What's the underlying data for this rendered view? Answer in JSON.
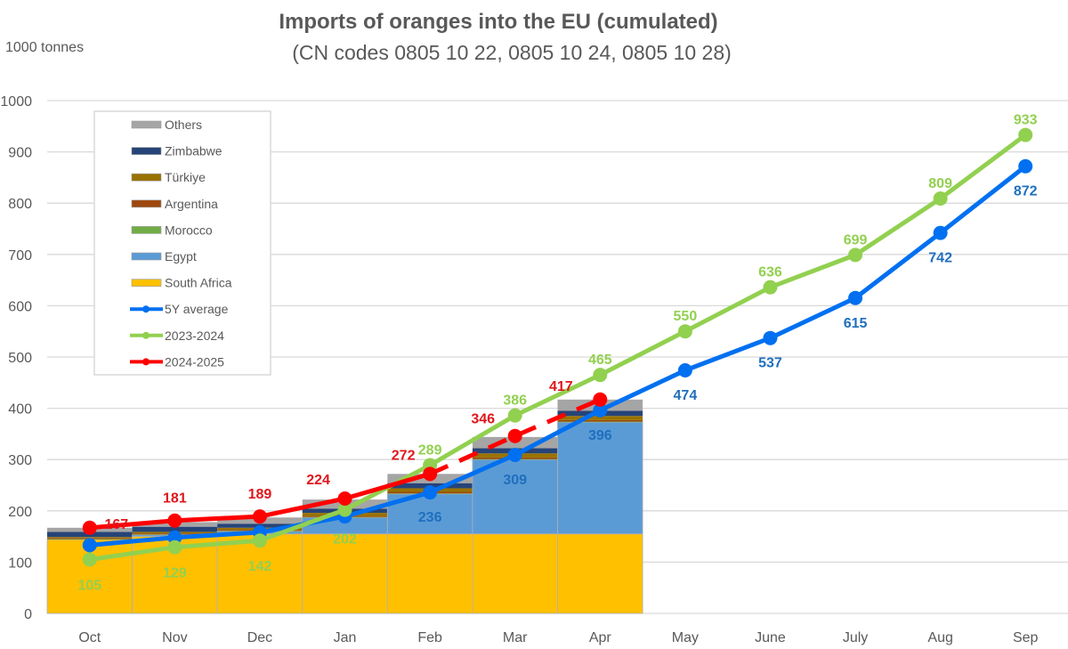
{
  "chart_data": {
    "type": "bar",
    "title": "Imports of oranges into the EU (cumulated)",
    "subtitle": "(CN codes 0805 10 22, 0805 10 24, 0805 10 28)",
    "ylabel": "1000 tonnes",
    "xlabel": "",
    "ylim": [
      0,
      1000
    ],
    "yticks": [
      0,
      100,
      200,
      300,
      400,
      500,
      600,
      700,
      800,
      900,
      1000
    ],
    "grid": true,
    "legend_position": "top-left",
    "categories": [
      "Oct",
      "Nov",
      "Dec",
      "Jan",
      "Feb",
      "Mar",
      "Apr",
      "May",
      "June",
      "July",
      "Aug",
      "Sep"
    ],
    "stacked_series": [
      {
        "name": "South Africa",
        "color": "#FFC000",
        "values": [
          144,
          150,
          155,
          155,
          155,
          155,
          155
        ]
      },
      {
        "name": "Egypt",
        "color": "#5B9BD5",
        "values": [
          0,
          3,
          5,
          32,
          78,
          145,
          218
        ]
      },
      {
        "name": "Morocco",
        "color": "#70AD47",
        "values": [
          1,
          1,
          1,
          1,
          1,
          1,
          1
        ]
      },
      {
        "name": "Argentina",
        "color": "#9E480E",
        "values": [
          2,
          2,
          2,
          2,
          3,
          3,
          3
        ]
      },
      {
        "name": "Türkiye",
        "color": "#997300",
        "values": [
          2,
          3,
          4,
          6,
          7,
          8,
          8
        ]
      },
      {
        "name": "Zimbabwe",
        "color": "#264478",
        "values": [
          10,
          10,
          8,
          8,
          10,
          10,
          10
        ]
      },
      {
        "name": "Others",
        "color": "#A5A5A5",
        "values": [
          8,
          9,
          12,
          18,
          18,
          22,
          22
        ]
      }
    ],
    "line_series": [
      {
        "name": "5Y  average",
        "color": "#0070F0",
        "label_color": "#1F6FBF",
        "dashed_from": null,
        "values": [
          133,
          148,
          158,
          189,
          236,
          309,
          396,
          474,
          537,
          615,
          742,
          872
        ],
        "labels": [
          null,
          null,
          null,
          null,
          "236",
          "309",
          "396",
          "474",
          "537",
          "615",
          "742",
          "872"
        ]
      },
      {
        "name": "2023-2024",
        "color": "#92D050",
        "label_color": "#92D050",
        "dashed_from": null,
        "values": [
          105,
          129,
          142,
          202,
          289,
          386,
          465,
          550,
          636,
          699,
          809,
          933
        ],
        "labels": [
          "105",
          "129",
          "142",
          "202",
          "289",
          "386",
          "465",
          "550",
          "636",
          "699",
          "809",
          "933"
        ]
      },
      {
        "name": "2024-2025",
        "color": "#FF0000",
        "label_color": "#E0161B",
        "dashed_from": 4,
        "values": [
          167,
          181,
          189,
          224,
          272,
          346,
          417
        ],
        "labels": [
          "167",
          "181",
          "189",
          "224",
          "272",
          "346",
          "417"
        ]
      }
    ]
  }
}
